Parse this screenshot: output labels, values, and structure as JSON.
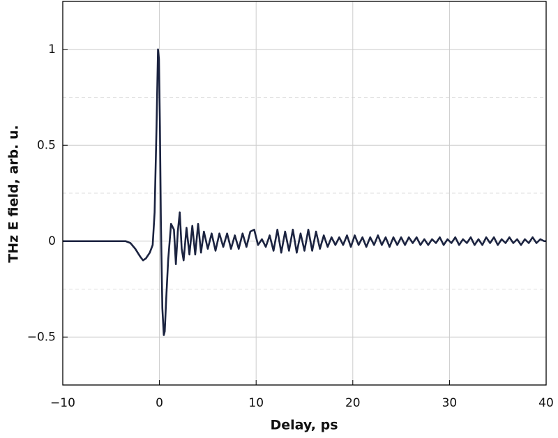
{
  "chart_data": {
    "type": "line",
    "xlabel": "Delay, ps",
    "ylabel": "THz E field, arb. u.",
    "xlim": [
      -10,
      40
    ],
    "ylim": [
      -0.75,
      1.25
    ],
    "xticks": [
      {
        "value": -10,
        "label": "−10"
      },
      0,
      10,
      20,
      30,
      40
    ],
    "yticks": [
      {
        "value": -0.5,
        "label": "−0.5"
      },
      0,
      0.5,
      1
    ],
    "yminorticks": [
      -0.25,
      0.25,
      0.75
    ],
    "grid": true,
    "series": [
      {
        "color": "#1b2340",
        "x": [
          -10,
          -3.5,
          -3,
          -2.5,
          -2,
          -1.7,
          -1.4,
          -1.0,
          -0.7,
          -0.5,
          -0.3,
          -0.15,
          -0.05,
          0.05,
          0.15,
          0.3,
          0.45,
          0.55,
          0.7,
          0.9,
          1.2,
          1.5,
          1.7,
          1.9,
          2.1,
          2.3,
          2.5,
          2.8,
          3.1,
          3.4,
          3.7,
          4.0,
          4.3,
          4.6,
          5.0,
          5.4,
          5.8,
          6.2,
          6.6,
          7.0,
          7.4,
          7.8,
          8.2,
          8.6,
          9.0,
          9.4,
          9.8,
          10.2,
          10.6,
          11.0,
          11.4,
          11.8,
          12.2,
          12.6,
          13.0,
          13.4,
          13.8,
          14.2,
          14.6,
          15.0,
          15.4,
          15.8,
          16.2,
          16.6,
          17.0,
          17.4,
          17.8,
          18.2,
          18.6,
          19.0,
          19.4,
          19.8,
          20.2,
          20.6,
          21.0,
          21.4,
          21.8,
          22.2,
          22.6,
          23.0,
          23.4,
          23.8,
          24.2,
          24.6,
          25.0,
          25.4,
          25.8,
          26.2,
          26.6,
          27.0,
          27.4,
          27.8,
          28.2,
          28.6,
          29.0,
          29.4,
          29.8,
          30.2,
          30.6,
          31.0,
          31.4,
          31.8,
          32.2,
          32.6,
          33.0,
          33.4,
          33.8,
          34.2,
          34.6,
          35.0,
          35.4,
          35.8,
          36.2,
          36.6,
          37.0,
          37.4,
          37.8,
          38.2,
          38.6,
          39.0,
          39.4,
          39.8,
          40
        ],
        "values": [
          0,
          0,
          -0.01,
          -0.04,
          -0.08,
          -0.1,
          -0.09,
          -0.06,
          -0.02,
          0.15,
          0.6,
          1.0,
          0.95,
          0.6,
          0.1,
          -0.35,
          -0.49,
          -0.47,
          -0.3,
          -0.1,
          0.09,
          0.06,
          -0.12,
          0.05,
          0.15,
          -0.04,
          -0.1,
          0.07,
          -0.07,
          0.08,
          -0.07,
          0.09,
          -0.06,
          0.05,
          -0.04,
          0.04,
          -0.05,
          0.04,
          -0.03,
          0.04,
          -0.04,
          0.03,
          -0.04,
          0.04,
          -0.03,
          0.05,
          0.06,
          -0.02,
          0.01,
          -0.03,
          0.03,
          -0.05,
          0.06,
          -0.06,
          0.05,
          -0.05,
          0.06,
          -0.06,
          0.04,
          -0.05,
          0.06,
          -0.05,
          0.05,
          -0.04,
          0.03,
          -0.03,
          0.02,
          -0.02,
          0.02,
          -0.02,
          0.03,
          -0.03,
          0.03,
          -0.02,
          0.02,
          -0.03,
          0.02,
          -0.02,
          0.03,
          -0.02,
          0.02,
          -0.03,
          0.02,
          -0.02,
          0.02,
          -0.02,
          0.02,
          -0.01,
          0.02,
          -0.02,
          0.01,
          -0.02,
          0.01,
          -0.01,
          0.02,
          -0.02,
          0.01,
          -0.01,
          0.02,
          -0.02,
          0.01,
          -0.01,
          0.02,
          -0.02,
          0.01,
          -0.02,
          0.02,
          -0.01,
          0.02,
          -0.02,
          0.01,
          -0.01,
          0.02,
          -0.01,
          0.01,
          -0.02,
          0.01,
          -0.01,
          0.02,
          -0.01,
          0.01,
          0,
          0
        ]
      }
    ]
  }
}
